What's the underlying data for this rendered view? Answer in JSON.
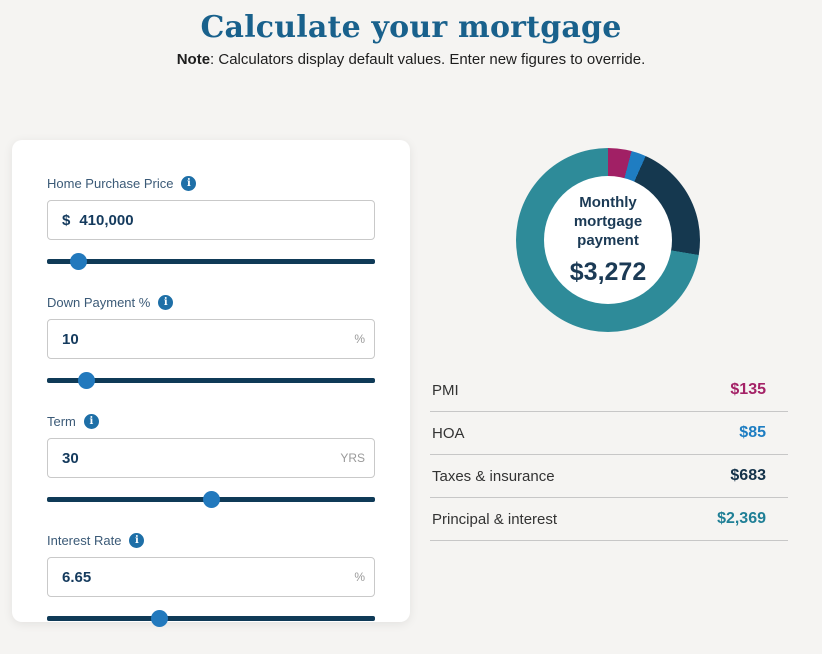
{
  "header": {
    "title": "Calculate your mortgage",
    "note_label": "Note",
    "note_text": ": Calculators display default values. Enter new figures to override."
  },
  "calculator": {
    "fields": [
      {
        "label": "Home Purchase Price",
        "prefix": "$",
        "value": "410,000",
        "suffix": "",
        "slider_percent": 9.6
      },
      {
        "label": "Down Payment %",
        "prefix": "",
        "value": "10",
        "suffix": "%",
        "slider_percent": 12
      },
      {
        "label": "Term",
        "prefix": "",
        "value": "30",
        "suffix": "YRS",
        "slider_percent": 50
      },
      {
        "label": "Interest Rate",
        "prefix": "",
        "value": "6.65",
        "suffix": "%",
        "slider_percent": 34.3
      }
    ],
    "info_icon_glyph": "i"
  },
  "chart_data": {
    "type": "pie",
    "subtype": "donut",
    "center_label_line1": "Monthly",
    "center_label_line2": "mortgage payment",
    "center_value": "$3,272",
    "total": 3272,
    "start_angle_deg": 0,
    "direction": "clockwise",
    "segments": [
      {
        "label": "PMI",
        "value": 135,
        "display": "$135",
        "color": "#a12065",
        "text_color": "#a42267"
      },
      {
        "label": "HOA",
        "value": 85,
        "display": "$85",
        "color": "#1f7dc2",
        "text_color": "#1d7dc2"
      },
      {
        "label": "Taxes & insurance",
        "value": 683,
        "display": "$683",
        "color": "#15384f",
        "text_color": "#14324a"
      },
      {
        "label": "Principal & interest",
        "value": 2369,
        "display": "$2,369",
        "color": "#2e8b99",
        "text_color": "#1f7f96"
      }
    ]
  },
  "colors": {
    "page_background": "#f5f4f2",
    "card_background": "#ffffff",
    "title": "#19618c",
    "slider_track": "#0f3a57",
    "slider_thumb": "#2279bd",
    "input_text": "#143a5d",
    "donut_center_text": "#1b3a55"
  }
}
